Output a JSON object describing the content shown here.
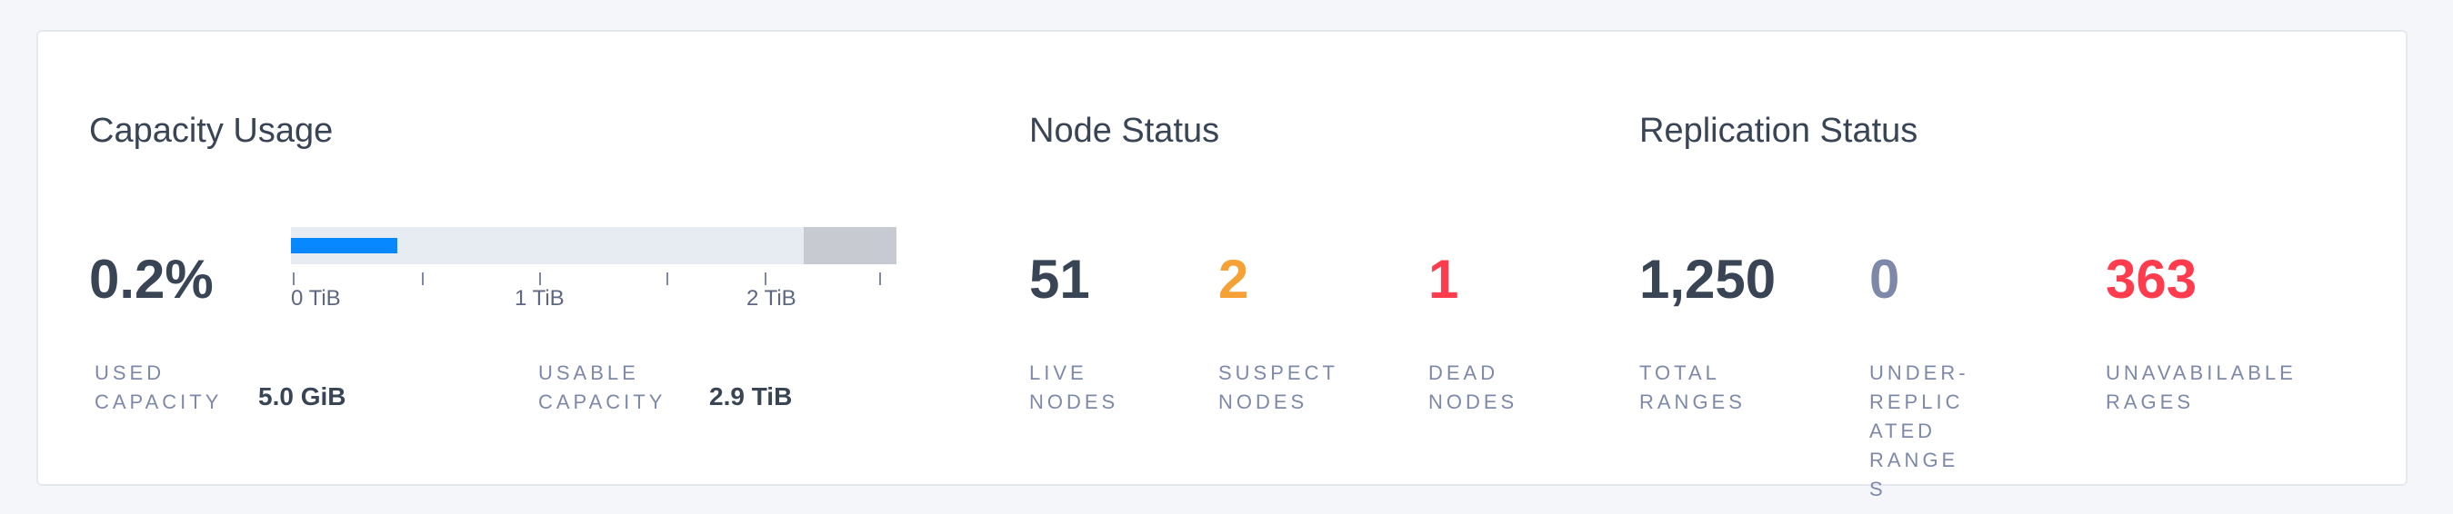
{
  "capacity": {
    "title": "Capacity Usage",
    "percent": "0.2%",
    "bar": {
      "fill_color": "#0788ff",
      "track_color": "#e7ecf3",
      "unavailable_color": "#c8cad2"
    },
    "ticks": [
      "0 TiB",
      "1 TiB",
      "2 TiB"
    ],
    "used_label": "USED CAPACITY",
    "used_value": "5.0 GiB",
    "usable_label": "USABLE CAPACITY",
    "usable_value": "2.9 TiB"
  },
  "nodes": {
    "title": "Node Status",
    "items": [
      {
        "value": "51",
        "label": "LIVE NODES",
        "color": "#394455"
      },
      {
        "value": "2",
        "label": "SUSPECT NODES",
        "color": "#f5a135"
      },
      {
        "value": "1",
        "label": "DEAD NODES",
        "color": "#ff3b4e"
      }
    ]
  },
  "replication": {
    "title": "Replication Status",
    "items": [
      {
        "value": "1,250",
        "label": "TOTAL RANGES",
        "color": "#394455"
      },
      {
        "value": "0",
        "label": "UNDER-REPLICATED RANGES",
        "color": "#7e89a9"
      },
      {
        "value": "363",
        "label": "UNAVABILABLE RAGES",
        "color": "#ff3b4e"
      }
    ]
  }
}
